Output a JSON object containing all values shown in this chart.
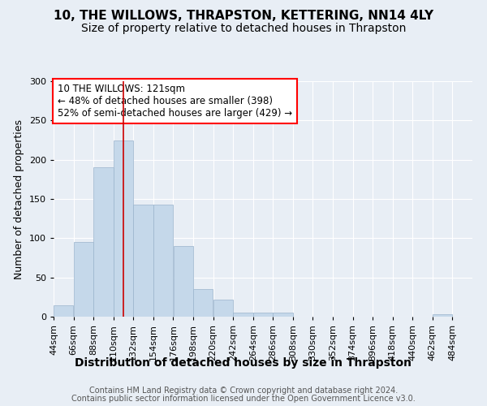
{
  "title1": "10, THE WILLOWS, THRAPSTON, KETTERING, NN14 4LY",
  "title2": "Size of property relative to detached houses in Thrapston",
  "xlabel": "Distribution of detached houses by size in Thrapston",
  "ylabel": "Number of detached properties",
  "footnote1": "Contains HM Land Registry data © Crown copyright and database right 2024.",
  "footnote2": "Contains public sector information licensed under the Open Government Licence v3.0.",
  "annotation_line1": "10 THE WILLOWS: 121sqm",
  "annotation_line2": "← 48% of detached houses are smaller (398)",
  "annotation_line3": "52% of semi-detached houses are larger (429) →",
  "bin_edges": [
    44,
    66,
    88,
    110,
    132,
    154,
    176,
    198,
    220,
    242,
    264,
    286,
    308,
    330,
    352,
    374,
    396,
    418,
    440,
    462,
    484
  ],
  "bar_heights": [
    15,
    95,
    190,
    225,
    143,
    143,
    90,
    35,
    22,
    5,
    5,
    5,
    0,
    0,
    0,
    0,
    0,
    0,
    0,
    3
  ],
  "bar_color": "#c5d8ea",
  "bar_edgecolor": "#9ab4cc",
  "vline_x": 121,
  "vline_color": "#cc0000",
  "ylim": [
    0,
    300
  ],
  "yticks": [
    0,
    50,
    100,
    150,
    200,
    250,
    300
  ],
  "xlim": [
    44,
    506
  ],
  "background_color": "#e8eef5",
  "plot_bg_color": "#e8eef5",
  "grid_color": "#ffffff",
  "title_fontsize": 11,
  "subtitle_fontsize": 10,
  "xlabel_fontsize": 10,
  "ylabel_fontsize": 9,
  "tick_fontsize": 8,
  "annot_fontsize": 8.5,
  "footnote_fontsize": 7
}
